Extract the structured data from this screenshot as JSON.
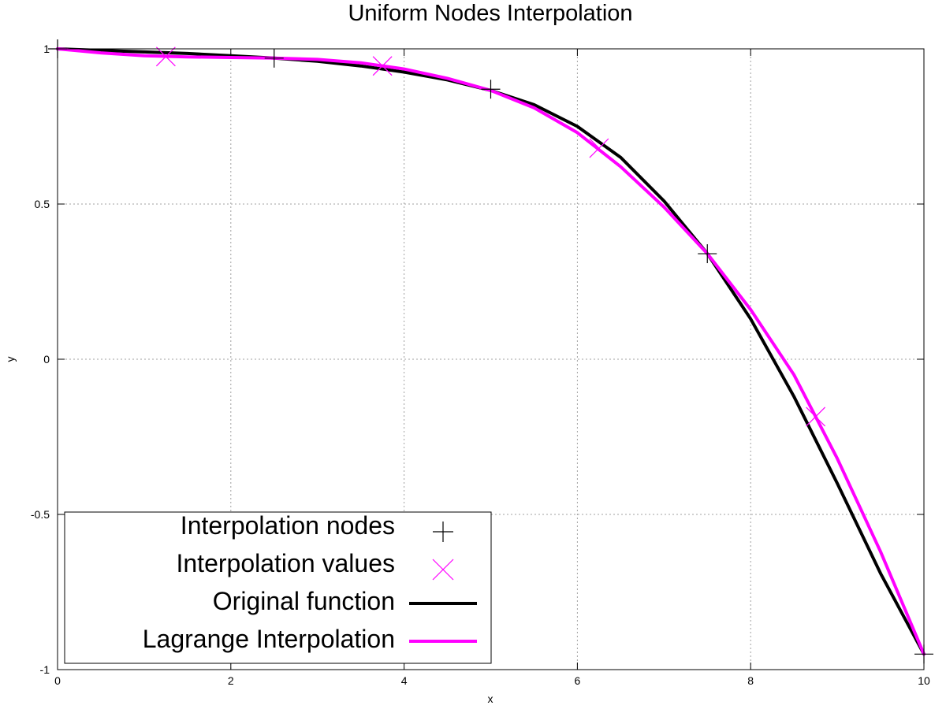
{
  "chart_data": {
    "type": "line",
    "title": "Uniform Nodes Interpolation",
    "xlabel": "x",
    "ylabel": "y",
    "xlim": [
      0,
      10
    ],
    "ylim": [
      -1,
      1
    ],
    "x_ticks": [
      0,
      2,
      4,
      6,
      8,
      10
    ],
    "y_ticks": [
      -1,
      -0.5,
      0,
      0.5,
      1
    ],
    "x_tick_labels": [
      "0",
      "2",
      "4",
      "6",
      "8",
      "10"
    ],
    "y_tick_labels": [
      "-1",
      "-0.5",
      "0",
      "0.5",
      "1"
    ],
    "grid": true,
    "legend_position": "bottom-left",
    "series": [
      {
        "name": "Interpolation nodes",
        "kind": "points",
        "marker": "plus",
        "color": "#000000",
        "x": [
          0,
          2.5,
          5,
          7.5,
          10
        ],
        "y": [
          1,
          0.97,
          0.87,
          0.34,
          -0.95
        ]
      },
      {
        "name": "Interpolation values",
        "kind": "points",
        "marker": "cross",
        "color": "#ff00ff",
        "x": [
          1.25,
          3.75,
          6.25,
          8.75
        ],
        "y": [
          0.975,
          0.945,
          0.68,
          -0.185
        ]
      },
      {
        "name": "Original function",
        "kind": "line",
        "color": "#000000",
        "x": [
          0,
          0.5,
          1,
          1.5,
          2,
          2.5,
          3,
          3.5,
          4,
          4.5,
          5,
          5.5,
          6,
          6.5,
          7,
          7.5,
          8,
          8.5,
          9,
          9.5,
          10
        ],
        "y": [
          1.0,
          0.995,
          0.99,
          0.985,
          0.978,
          0.97,
          0.96,
          0.945,
          0.925,
          0.9,
          0.866,
          0.82,
          0.75,
          0.65,
          0.51,
          0.34,
          0.13,
          -0.12,
          -0.4,
          -0.69,
          -0.95
        ]
      },
      {
        "name": "Lagrange Interpolation",
        "kind": "line",
        "color": "#ff00ff",
        "x": [
          0,
          0.5,
          1,
          1.5,
          2,
          2.5,
          3,
          3.5,
          4,
          4.5,
          5,
          5.5,
          6,
          6.5,
          7,
          7.5,
          8,
          8.5,
          9,
          9.5,
          10
        ],
        "y": [
          1.0,
          0.987,
          0.978,
          0.974,
          0.972,
          0.97,
          0.966,
          0.955,
          0.935,
          0.905,
          0.866,
          0.81,
          0.73,
          0.62,
          0.49,
          0.34,
          0.16,
          -0.05,
          -0.32,
          -0.62,
          -0.95
        ]
      }
    ]
  }
}
